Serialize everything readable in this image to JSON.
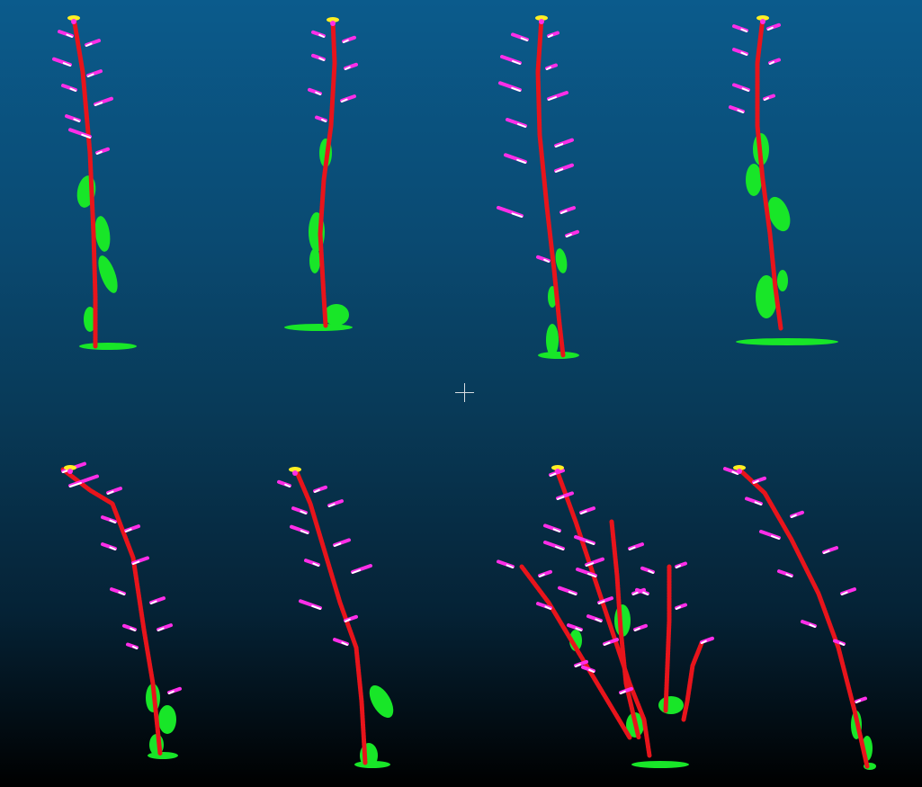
{
  "viewer": {
    "background_top": "#0b5b8c",
    "background_bottom": "#000000",
    "pivot_marker": "crosshair-icon"
  },
  "point_cloud": {
    "class_colors": {
      "stem": "#e8141b",
      "leaf": "#18e628",
      "bud": "#ff2ee8",
      "node": "#ffffff",
      "flower": "#ffee22"
    }
  }
}
